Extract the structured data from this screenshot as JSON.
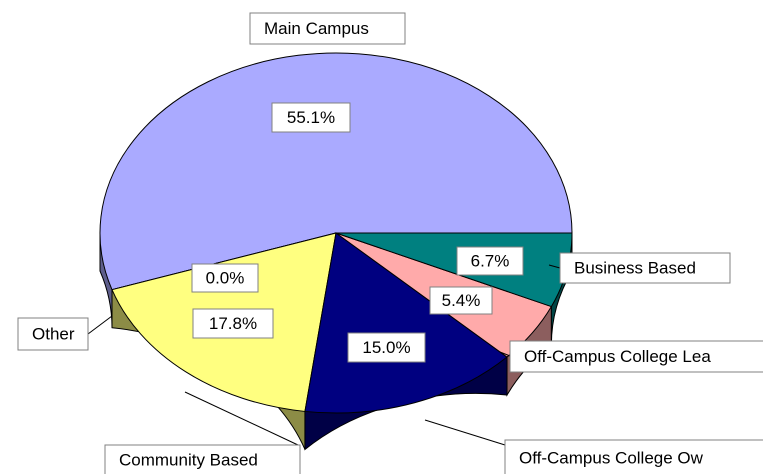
{
  "chart_data": {
    "type": "pie3d",
    "categories": [
      "Main Campus",
      "Other",
      "Community Based",
      "Off-Campus College Ow",
      "Off-Campus College Lea",
      "Business Based"
    ],
    "values": [
      55.1,
      0.0,
      17.8,
      15.0,
      5.4,
      6.7
    ],
    "value_labels": [
      "55.1%",
      "0.0%",
      "17.8%",
      "15.0%",
      "5.4%",
      "6.7%"
    ],
    "colors": [
      "#aaaaff",
      "#ffffff",
      "#ffff80",
      "#000080",
      "#ffaaaa",
      "#008080"
    ]
  }
}
